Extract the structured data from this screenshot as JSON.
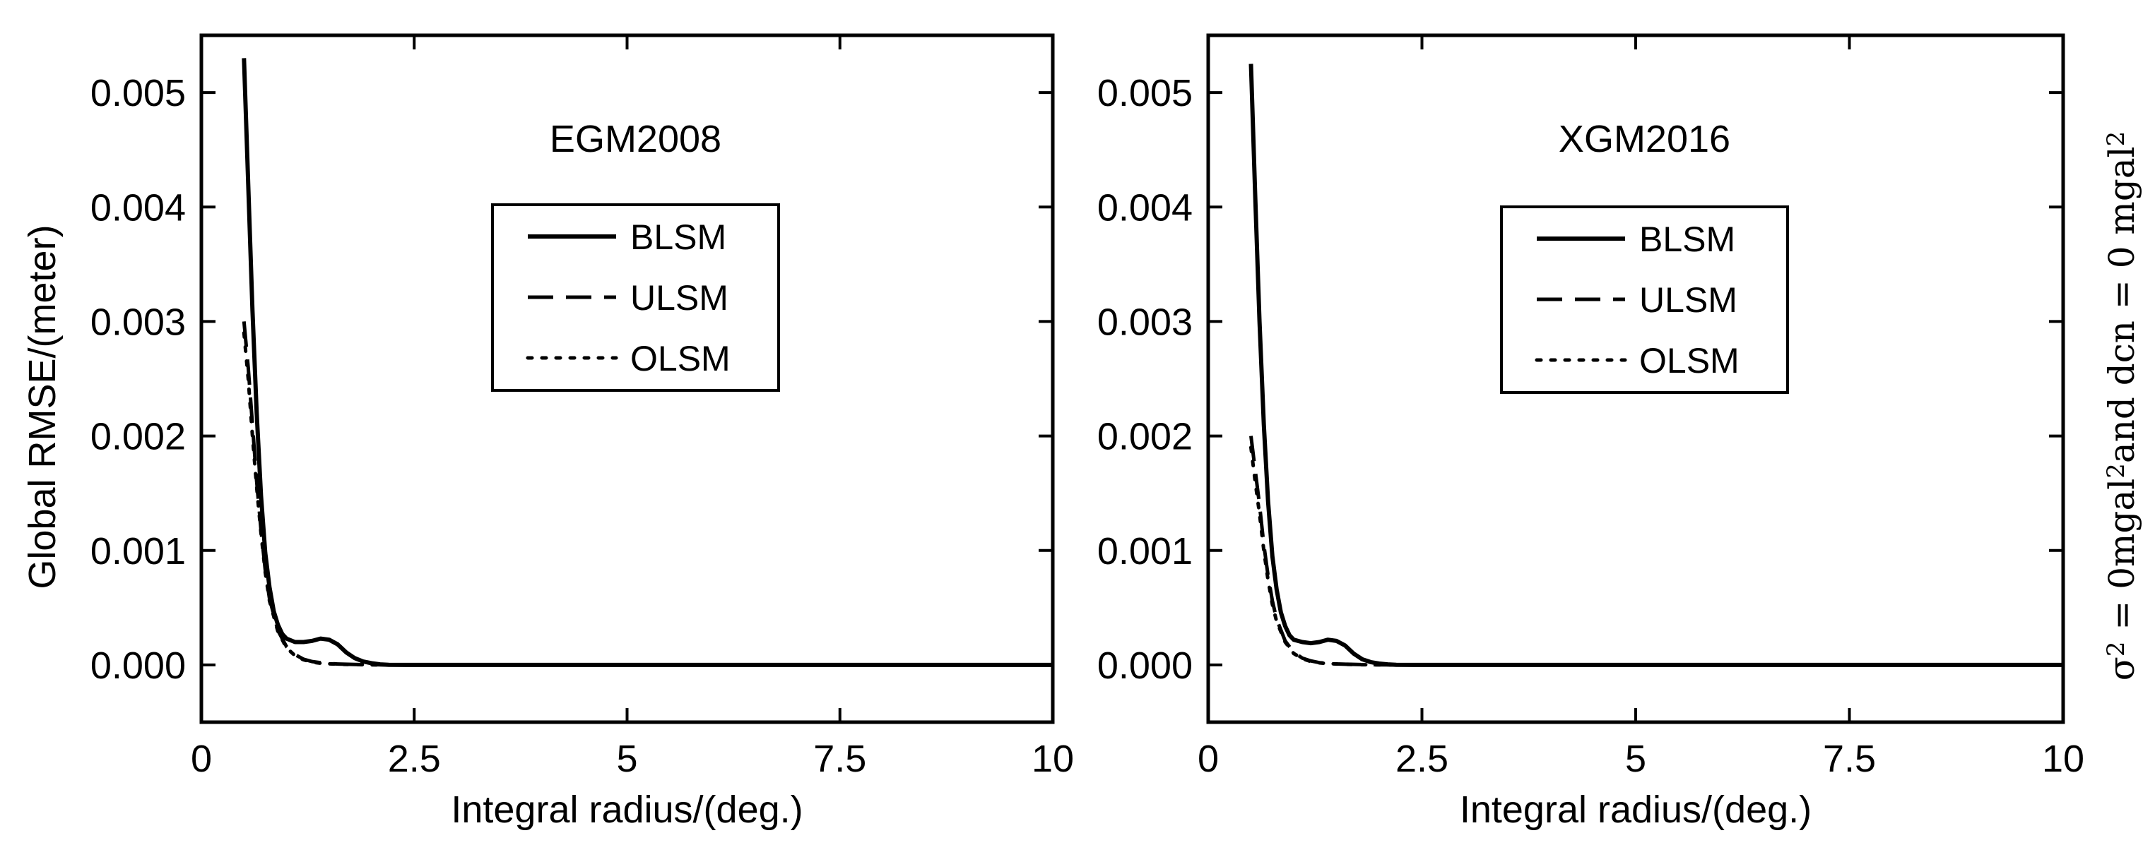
{
  "figure": {
    "side_label": {
      "parts": [
        {
          "t": "σ",
          "sup": false
        },
        {
          "t": "2",
          "sup": true
        },
        {
          "t": " = 0mgal",
          "sup": false
        },
        {
          "t": "2",
          "sup": true
        },
        {
          "t": "and dcn = 0 mgal",
          "sup": false
        },
        {
          "t": "2",
          "sup": true
        }
      ]
    }
  },
  "chart_data": [
    {
      "type": "line",
      "title": "EGM2008",
      "xlabel": "Integral radius/(deg.)",
      "ylabel": "Global RMSE/(meter)",
      "xlim": [
        0,
        10
      ],
      "ylim": [
        -0.0005,
        0.0055
      ],
      "xticks": [
        0,
        2.5,
        5,
        7.5,
        10
      ],
      "xtick_labels": [
        "0",
        "2.5",
        "5",
        "7.5",
        "10"
      ],
      "yticks": [
        0,
        0.001,
        0.002,
        0.003,
        0.004,
        0.005
      ],
      "ytick_labels": [
        "0.000",
        "0.001",
        "0.002",
        "0.003",
        "0.004",
        "0.005"
      ],
      "grid": false,
      "legend_position": "upper-center",
      "series": [
        {
          "name": "BLSM",
          "dash": "solid",
          "color": "#000000",
          "x": [
            0.5,
            0.55,
            0.6,
            0.65,
            0.7,
            0.75,
            0.8,
            0.85,
            0.9,
            0.95,
            1.0,
            1.1,
            1.2,
            1.3,
            1.4,
            1.5,
            1.6,
            1.7,
            1.8,
            1.9,
            2.0,
            2.1,
            2.2,
            2.4,
            2.6,
            3,
            4,
            5,
            6,
            7,
            8,
            9,
            10
          ],
          "y": [
            0.0053,
            0.0042,
            0.0031,
            0.0022,
            0.00148,
            0.00098,
            0.00068,
            0.00047,
            0.00035,
            0.00027,
            0.00023,
            0.0002,
            0.0002,
            0.00021,
            0.00023,
            0.00022,
            0.00018,
            0.00011,
            6e-05,
            3e-05,
            1.5e-05,
            5e-06,
            1e-06,
            0,
            0,
            0,
            0,
            0,
            0,
            0,
            0,
            0,
            0
          ]
        },
        {
          "name": "ULSM",
          "dash": "dashed",
          "color": "#000000",
          "x": [
            0.5,
            0.55,
            0.6,
            0.65,
            0.7,
            0.75,
            0.8,
            0.9,
            1.0,
            1.1,
            1.2,
            1.3,
            1.4,
            1.5,
            1.6,
            1.8,
            2.0,
            2.2,
            2.5,
            3,
            4,
            5,
            6,
            7,
            8,
            9,
            10
          ],
          "y": [
            0.003,
            0.0026,
            0.0021,
            0.0016,
            0.00118,
            0.00083,
            0.00058,
            0.0003,
            0.00016,
            9e-05,
            5e-05,
            3e-05,
            2e-05,
            1.2e-05,
            8e-06,
            4e-06,
            2e-06,
            1e-06,
            0,
            0,
            0,
            0,
            0,
            0,
            0,
            0,
            0
          ]
        },
        {
          "name": "OLSM",
          "dash": "dotted",
          "color": "#000000",
          "x": [
            0.5,
            0.55,
            0.6,
            0.65,
            0.7,
            0.75,
            0.8,
            0.9,
            1.0,
            1.1,
            1.2,
            1.3,
            1.4,
            1.5,
            1.6,
            1.8,
            2.0,
            2.2,
            2.5,
            3,
            4,
            5,
            6,
            7,
            8,
            9,
            10
          ],
          "y": [
            0.0029,
            0.0025,
            0.002,
            0.00155,
            0.00115,
            0.00081,
            0.00056,
            0.00029,
            0.00015,
            8e-05,
            4.5e-05,
            2.5e-05,
            1.5e-05,
            1e-05,
            6e-06,
            3e-06,
            1e-06,
            0,
            0,
            0,
            0,
            0,
            0,
            0,
            0,
            0,
            0
          ]
        }
      ]
    },
    {
      "type": "line",
      "title": "XGM2016",
      "xlabel": "Integral radius/(deg.)",
      "ylabel": "",
      "xlim": [
        0,
        10
      ],
      "ylim": [
        -0.0005,
        0.0055
      ],
      "xticks": [
        0,
        2.5,
        5,
        7.5,
        10
      ],
      "xtick_labels": [
        "0",
        "2.5",
        "5",
        "7.5",
        "10"
      ],
      "yticks": [
        0,
        0.001,
        0.002,
        0.003,
        0.004,
        0.005
      ],
      "ytick_labels": [
        "0.000",
        "0.001",
        "0.002",
        "0.003",
        "0.004",
        "0.005"
      ],
      "grid": false,
      "legend_position": "upper-center",
      "series": [
        {
          "name": "BLSM",
          "dash": "solid",
          "color": "#000000",
          "x": [
            0.5,
            0.55,
            0.6,
            0.65,
            0.7,
            0.75,
            0.8,
            0.85,
            0.9,
            0.95,
            1.0,
            1.1,
            1.2,
            1.3,
            1.4,
            1.5,
            1.6,
            1.7,
            1.8,
            1.9,
            2.0,
            2.1,
            2.2,
            2.4,
            2.6,
            3,
            4,
            5,
            6,
            7,
            8,
            9,
            10
          ],
          "y": [
            0.00525,
            0.0041,
            0.003,
            0.0021,
            0.00143,
            0.00095,
            0.00066,
            0.00046,
            0.00034,
            0.00026,
            0.00022,
            0.0002,
            0.00019,
            0.0002,
            0.00022,
            0.00021,
            0.00017,
            0.0001,
            5e-05,
            2.5e-05,
            1.2e-05,
            5e-06,
            1e-06,
            0,
            0,
            0,
            0,
            0,
            0,
            0,
            0,
            0,
            0
          ]
        },
        {
          "name": "ULSM",
          "dash": "dashed",
          "color": "#000000",
          "x": [
            0.5,
            0.55,
            0.6,
            0.65,
            0.7,
            0.75,
            0.8,
            0.9,
            1.0,
            1.1,
            1.2,
            1.3,
            1.4,
            1.5,
            1.6,
            1.8,
            2.0,
            2.2,
            2.5,
            3,
            4,
            5,
            6,
            7,
            8,
            9,
            10
          ],
          "y": [
            0.002,
            0.0017,
            0.0014,
            0.00105,
            0.00078,
            0.00056,
            0.0004,
            0.00021,
            0.00011,
            6e-05,
            3.5e-05,
            2e-05,
            1.4e-05,
            9e-06,
            6e-06,
            3e-06,
            1e-06,
            0,
            0,
            0,
            0,
            0,
            0,
            0,
            0,
            0,
            0
          ]
        },
        {
          "name": "OLSM",
          "dash": "dotted",
          "color": "#000000",
          "x": [
            0.5,
            0.55,
            0.6,
            0.65,
            0.7,
            0.75,
            0.8,
            0.9,
            1.0,
            1.1,
            1.2,
            1.3,
            1.4,
            1.5,
            1.6,
            1.8,
            2.0,
            2.2,
            2.5,
            3,
            4,
            5,
            6,
            7,
            8,
            9,
            10
          ],
          "y": [
            0.0019,
            0.0016,
            0.00132,
            0.001,
            0.00074,
            0.00053,
            0.00038,
            0.0002,
            0.0001,
            5.5e-05,
            3e-05,
            1.8e-05,
            1.2e-05,
            8e-06,
            5e-06,
            2e-06,
            1e-06,
            0,
            0,
            0,
            0,
            0,
            0,
            0,
            0,
            0,
            0
          ]
        }
      ]
    }
  ]
}
